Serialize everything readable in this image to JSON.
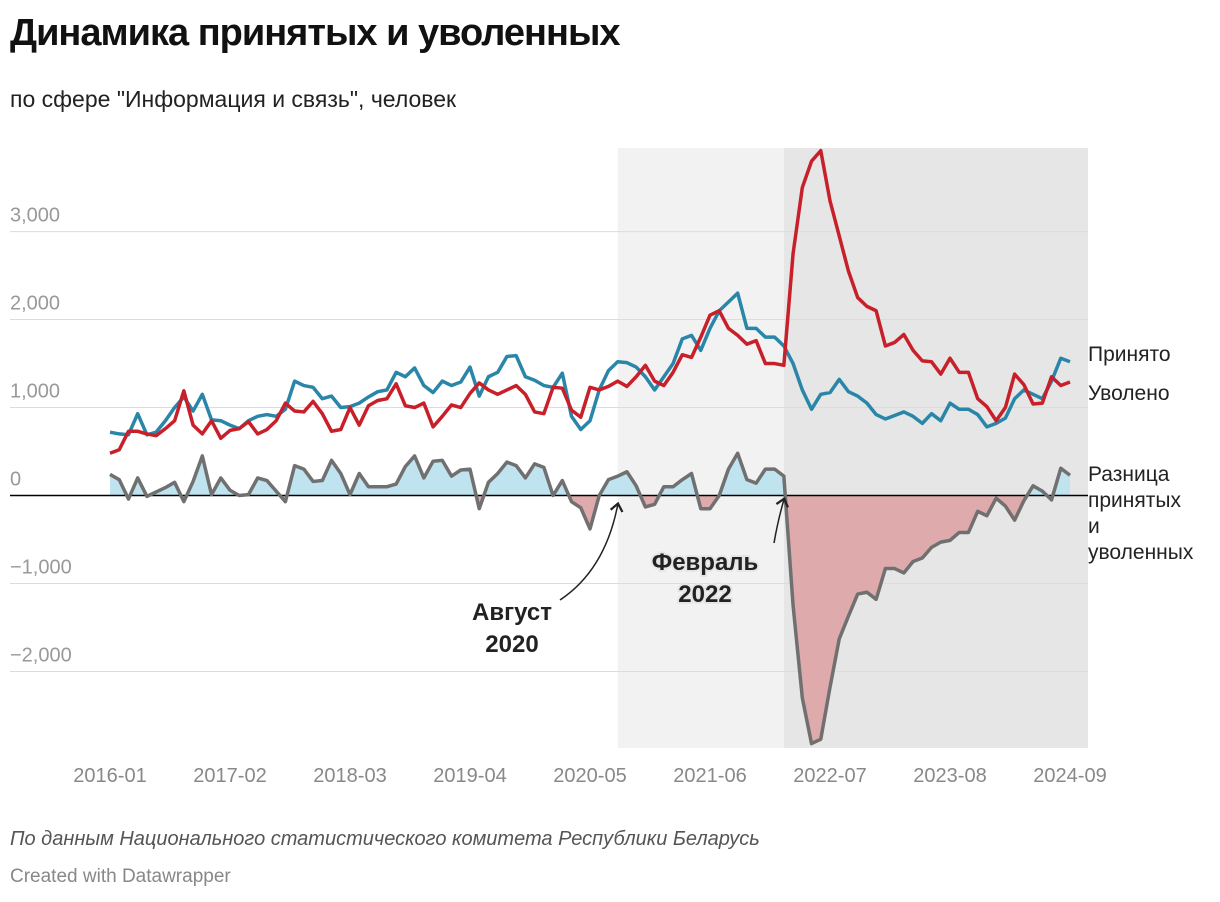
{
  "chart_data": {
    "type": "line",
    "title": "Динамика принятых и уволенных",
    "subtitle": "по сфере \"Информация и связь\", человек",
    "source": "По данным Национального статистического комитета Республики Беларусь",
    "credit": "Created with Datawrapper",
    "x": [
      "2016-01",
      "2016-02",
      "2016-03",
      "2016-04",
      "2016-05",
      "2016-06",
      "2016-07",
      "2016-08",
      "2016-09",
      "2016-10",
      "2016-11",
      "2016-12",
      "2017-01",
      "2017-02",
      "2017-03",
      "2017-04",
      "2017-05",
      "2017-06",
      "2017-07",
      "2017-08",
      "2017-09",
      "2017-10",
      "2017-11",
      "2017-12",
      "2018-01",
      "2018-02",
      "2018-03",
      "2018-04",
      "2018-05",
      "2018-06",
      "2018-07",
      "2018-08",
      "2018-09",
      "2018-10",
      "2018-11",
      "2018-12",
      "2019-01",
      "2019-02",
      "2019-03",
      "2019-04",
      "2019-05",
      "2019-06",
      "2019-07",
      "2019-08",
      "2019-09",
      "2019-10",
      "2019-11",
      "2019-12",
      "2020-01",
      "2020-02",
      "2020-03",
      "2020-04",
      "2020-05",
      "2020-06",
      "2020-07",
      "2020-08",
      "2020-09",
      "2020-10",
      "2020-11",
      "2020-12",
      "2021-01",
      "2021-02",
      "2021-03",
      "2021-04",
      "2021-05",
      "2021-06",
      "2021-07",
      "2021-08",
      "2021-09",
      "2021-10",
      "2021-11",
      "2021-12",
      "2022-01",
      "2022-02",
      "2022-03",
      "2022-04",
      "2022-05",
      "2022-06",
      "2022-07",
      "2022-08",
      "2022-09",
      "2022-10",
      "2022-11",
      "2022-12",
      "2023-01",
      "2023-02",
      "2023-03",
      "2023-04",
      "2023-05",
      "2023-06",
      "2023-07",
      "2023-08",
      "2023-09",
      "2023-10",
      "2023-11",
      "2023-12",
      "2024-01",
      "2024-02",
      "2024-03",
      "2024-04",
      "2024-05",
      "2024-06",
      "2024-07",
      "2024-08",
      "2024-09"
    ],
    "xticks": [
      "2016-01",
      "2017-02",
      "2018-03",
      "2019-04",
      "2020-05",
      "2021-06",
      "2022-07",
      "2023-08",
      "2024-09"
    ],
    "series": [
      {
        "name": "Принято",
        "color": "#2a86a8",
        "values": [
          720,
          700,
          690,
          930,
          690,
          720,
          850,
          1000,
          1120,
          960,
          1150,
          860,
          850,
          800,
          760,
          850,
          900,
          920,
          900,
          980,
          1300,
          1250,
          1230,
          1100,
          1130,
          1000,
          1010,
          1050,
          1120,
          1180,
          1200,
          1400,
          1350,
          1450,
          1250,
          1170,
          1300,
          1250,
          1290,
          1460,
          1130,
          1350,
          1400,
          1580,
          1590,
          1350,
          1310,
          1250,
          1230,
          1390,
          900,
          750,
          850,
          1200,
          1420,
          1520,
          1510,
          1460,
          1350,
          1200,
          1350,
          1500,
          1780,
          1820,
          1650,
          1900,
          2100,
          2200,
          2300,
          1900,
          1900,
          1800,
          1800,
          1700,
          1500,
          1200,
          980,
          1150,
          1170,
          1320,
          1180,
          1130,
          1050,
          920,
          870,
          910,
          950,
          900,
          820,
          930,
          850,
          1050,
          980,
          980,
          920,
          780,
          820,
          880,
          1100,
          1200,
          1150,
          1100,
          1300,
          1560,
          1520
        ]
      },
      {
        "name": "Уволено",
        "color": "#c8202a",
        "values": [
          480,
          520,
          730,
          730,
          700,
          680,
          760,
          850,
          1190,
          800,
          700,
          850,
          650,
          740,
          760,
          840,
          700,
          750,
          850,
          1050,
          960,
          950,
          1070,
          930,
          730,
          750,
          1000,
          800,
          1020,
          1080,
          1100,
          1270,
          1020,
          1000,
          1050,
          780,
          900,
          1030,
          1000,
          1160,
          1280,
          1200,
          1150,
          1200,
          1250,
          1150,
          950,
          930,
          1230,
          1220,
          970,
          890,
          1230,
          1200,
          1240,
          1300,
          1240,
          1350,
          1480,
          1300,
          1250,
          1400,
          1600,
          1570,
          1800,
          2050,
          2100,
          1900,
          1820,
          1720,
          1760,
          1500,
          1500,
          1480,
          2750,
          3500,
          3800,
          3920,
          3350,
          2950,
          2550,
          2250,
          2150,
          2100,
          1700,
          1740,
          1830,
          1650,
          1530,
          1520,
          1380,
          1560,
          1400,
          1400,
          1100,
          1010,
          850,
          1000,
          1380,
          1260,
          1040,
          1050,
          1350,
          1250,
          1290
        ]
      },
      {
        "name": "Разница принятых и уволенных",
        "color": "#707070",
        "pos_color": "#bfe3ef",
        "neg_color": "#dfaaab",
        "values": [
          240,
          180,
          -40,
          200,
          -10,
          40,
          90,
          150,
          -70,
          160,
          450,
          10,
          200,
          60,
          0,
          10,
          200,
          170,
          50,
          -70,
          340,
          300,
          160,
          170,
          400,
          250,
          10,
          250,
          100,
          100,
          100,
          130,
          330,
          450,
          200,
          390,
          400,
          220,
          290,
          300,
          -150,
          150,
          250,
          380,
          340,
          200,
          360,
          320,
          0,
          170,
          -70,
          -140,
          -380,
          0,
          180,
          220,
          270,
          110,
          -130,
          -100,
          100,
          100,
          180,
          250,
          -150,
          -150,
          0,
          300,
          480,
          180,
          140,
          300,
          300,
          220,
          -1250,
          -2300,
          -2820,
          -2770,
          -2180,
          -1630,
          -1370,
          -1120,
          -1100,
          -1180,
          -830,
          -830,
          -880,
          -750,
          -710,
          -590,
          -530,
          -510,
          -420,
          -420,
          -180,
          -230,
          -30,
          -120,
          -280,
          -60,
          110,
          50,
          -50,
          310,
          230
        ]
      }
    ],
    "ylim": [
      -2870,
      3950
    ],
    "yticks": [
      {
        "value": -2000,
        "label": "−2,000"
      },
      {
        "value": -1000,
        "label": "−1,000"
      },
      0,
      {
        "value": 1000,
        "label": "1,000"
      },
      {
        "value": 2000,
        "label": "2,000"
      },
      {
        "value": 3000,
        "label": "3,000"
      }
    ],
    "grid": true,
    "annotations": [
      {
        "lines": [
          "Август",
          "2020"
        ],
        "x": "2020-08"
      },
      {
        "lines": [
          "Февраль",
          "2022"
        ],
        "x": "2022-02"
      }
    ]
  }
}
